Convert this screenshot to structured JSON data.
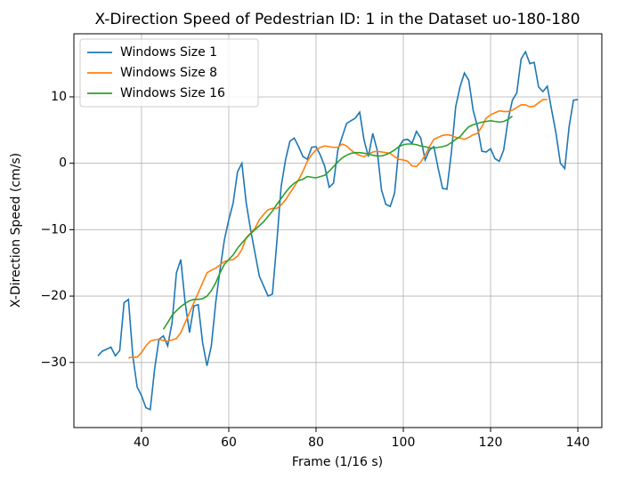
{
  "chart_data": {
    "type": "line",
    "title": "X-Direction Speed of Pedestrian ID: 1 in the Dataset uo-180-180",
    "x_label": "Frame (1/16 s)",
    "y_label": "X-Direction Speed (cm/s)",
    "x": [
      30,
      31,
      32,
      33,
      34,
      35,
      36,
      37,
      38,
      39,
      40,
      41,
      42,
      43,
      44,
      45,
      46,
      47,
      48,
      49,
      50,
      51,
      52,
      53,
      54,
      55,
      56,
      57,
      58,
      59,
      60,
      61,
      62,
      63,
      64,
      65,
      66,
      67,
      68,
      69,
      70,
      71,
      72,
      73,
      74,
      75,
      76,
      77,
      78,
      79,
      80,
      81,
      82,
      83,
      84,
      85,
      86,
      87,
      88,
      89,
      90,
      91,
      92,
      93,
      94,
      95,
      96,
      97,
      98,
      99,
      100,
      101,
      102,
      103,
      104,
      105,
      106,
      107,
      108,
      109,
      110,
      111,
      112,
      113,
      114,
      115,
      116,
      117,
      118,
      119,
      120,
      121,
      122,
      123,
      124,
      125,
      126,
      127,
      128,
      129,
      130,
      131,
      132,
      133,
      134,
      135,
      136,
      137,
      138,
      139,
      140
    ],
    "series": [
      {
        "name": "Windows Size 1",
        "color": "#1f77b4",
        "values": [
          -29,
          -28.3,
          -28,
          -27.7,
          -29,
          -28.2,
          -21,
          -20.5,
          -29,
          -33.7,
          -35,
          -36.8,
          -37.1,
          -31,
          -26.5,
          -26,
          -27.5,
          -24,
          -16.5,
          -14.5,
          -21,
          -25.5,
          -21.5,
          -21.3,
          -27,
          -30.5,
          -27.5,
          -21,
          -16,
          -11.5,
          -8.5,
          -6,
          -1.3,
          0,
          -6,
          -10,
          -13.5,
          -17,
          -18.5,
          -20,
          -19.7,
          -12,
          -3.5,
          0.5,
          3.3,
          3.8,
          2.5,
          1,
          0.6,
          2.4,
          2.5,
          1.2,
          -0.5,
          -3.6,
          -3,
          2,
          4,
          6,
          6.4,
          6.8,
          7.7,
          3.5,
          1,
          4.5,
          2,
          -4,
          -6.2,
          -6.5,
          -4.5,
          2.5,
          3.5,
          3.6,
          3,
          4.8,
          3.8,
          0.5,
          2,
          2.5,
          -0.8,
          -3.8,
          -3.9,
          1.5,
          8.5,
          11.5,
          13.6,
          12.5,
          8,
          5.5,
          1.8,
          1.7,
          2.2,
          0.7,
          0.3,
          2,
          6.5,
          9.5,
          10.6,
          15.7,
          16.8,
          15,
          15.2,
          11.5,
          10.8,
          11.6,
          8,
          4.5,
          0,
          -0.8,
          5.5,
          9.5,
          9.6
        ]
      },
      {
        "name": "Windows Size 8",
        "color": "#ff7f0e",
        "values": [
          null,
          null,
          null,
          null,
          null,
          null,
          null,
          -29.3,
          -29.2,
          -29.2,
          -28.5,
          -27.5,
          -26.8,
          -26.6,
          -26.5,
          -26.7,
          -26.8,
          -26.6,
          -26.4,
          -25.5,
          -24,
          -22.5,
          -21,
          -19.5,
          -18,
          -16.5,
          -16.1,
          -15.8,
          -15.3,
          -14.8,
          -14.6,
          -14.5,
          -14,
          -13,
          -11.2,
          -10.5,
          -9.8,
          -8.5,
          -7.7,
          -7,
          -6.8,
          -6.8,
          -6.3,
          -5.5,
          -4.5,
          -3.5,
          -2.5,
          -1.2,
          0.3,
          1.3,
          2,
          2.4,
          2.6,
          2.5,
          2.4,
          2.4,
          2.9,
          2.6,
          2,
          1.5,
          1.2,
          1,
          1.3,
          1.7,
          1.8,
          1.7,
          1.6,
          1.5,
          1,
          0.6,
          0.5,
          0.3,
          -0.4,
          -0.5,
          0.2,
          1.2,
          2.5,
          3.6,
          3.9,
          4.2,
          4.3,
          4.2,
          3.9,
          3.8,
          3.6,
          3.9,
          4.3,
          4.5,
          5.5,
          6.8,
          7.3,
          7.6,
          7.9,
          7.8,
          7.8,
          8,
          8.4,
          8.8,
          8.8,
          8.5,
          8.6,
          9.1,
          9.6,
          9.6,
          null,
          null,
          null,
          null,
          null,
          null,
          null
        ]
      },
      {
        "name": "Windows Size 16",
        "color": "#2ca02c",
        "values": [
          null,
          null,
          null,
          null,
          null,
          null,
          null,
          null,
          null,
          null,
          null,
          null,
          null,
          null,
          null,
          -25,
          -24,
          -22.9,
          -22.2,
          -21.6,
          -21.1,
          -20.7,
          -20.5,
          -20.5,
          -20.4,
          -20,
          -19.2,
          -18,
          -16.5,
          -15.2,
          -14.5,
          -13.8,
          -12.8,
          -12,
          -11.3,
          -10.6,
          -10,
          -9.4,
          -8.8,
          -8,
          -7.2,
          -6.2,
          -5.3,
          -4.4,
          -3.6,
          -3,
          -2.6,
          -2.4,
          -2,
          -2.1,
          -2.2,
          -2,
          -1.8,
          -1.2,
          -0.5,
          0.2,
          0.8,
          1.2,
          1.5,
          1.6,
          1.6,
          1.5,
          1.4,
          1.2,
          1.1,
          1.1,
          1.3,
          1.6,
          2,
          2.5,
          2.8,
          2.9,
          2.9,
          2.8,
          2.6,
          2.5,
          2.3,
          2.3,
          2.4,
          2.5,
          2.7,
          3.1,
          3.6,
          4,
          4.8,
          5.5,
          5.8,
          6,
          6.2,
          6.3,
          6.4,
          6.3,
          6.2,
          6.3,
          6.6,
          7.1,
          null,
          null,
          null,
          null,
          null,
          null,
          null,
          null,
          null,
          null,
          null,
          null,
          null,
          null,
          null
        ]
      }
    ],
    "xlim": [
      24.5,
      145.5
    ],
    "ylim": [
      -39.8,
      19.5
    ],
    "xticks": [
      40,
      60,
      80,
      100,
      120,
      140
    ],
    "yticks": [
      {
        "value": -30,
        "label": "−30"
      },
      {
        "value": -20,
        "label": "−20"
      },
      {
        "value": -10,
        "label": "−10"
      },
      0,
      10
    ],
    "grid": true,
    "legend": "upper left"
  }
}
